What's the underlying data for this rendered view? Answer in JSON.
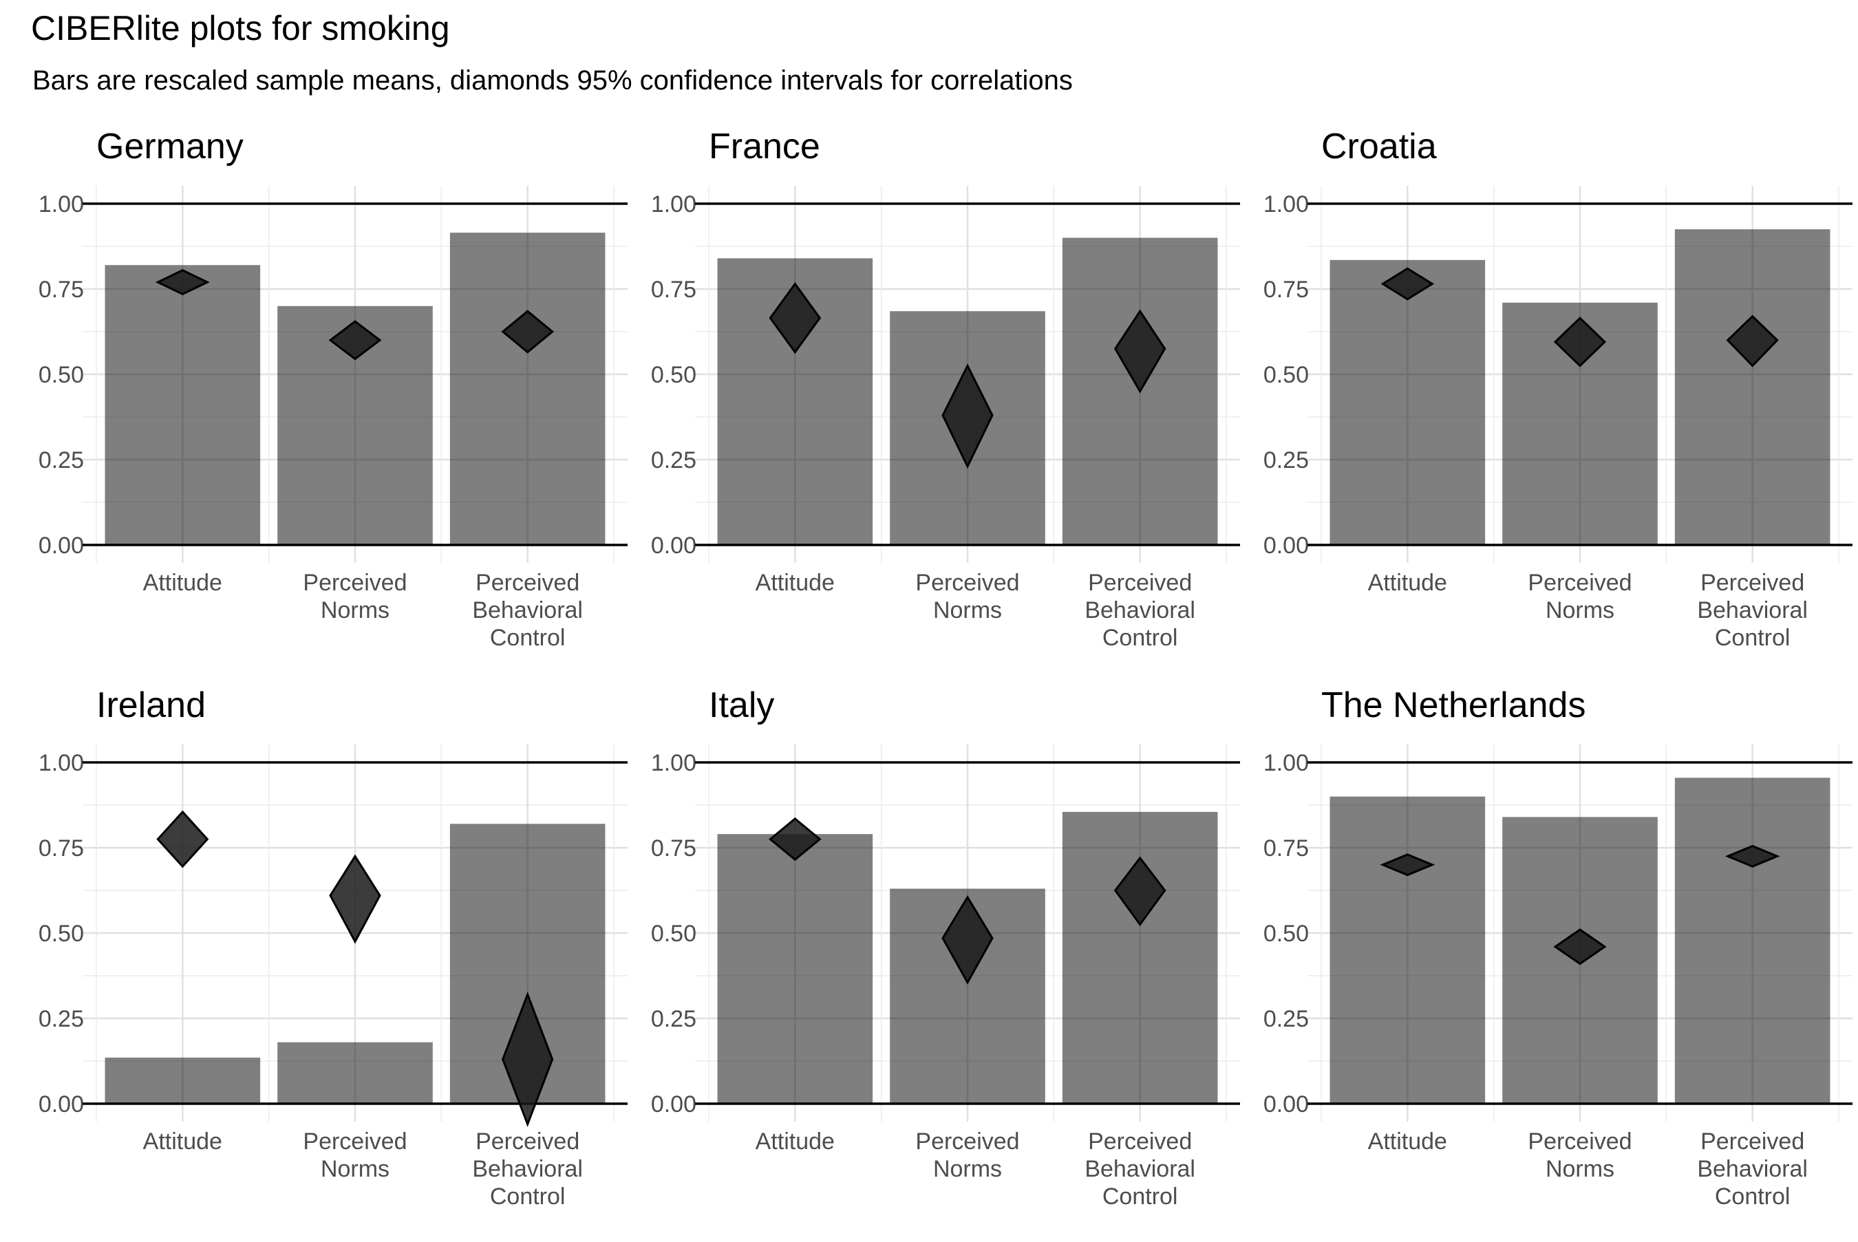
{
  "title": "CIBERlite plots for smoking",
  "subtitle": "Bars are rescaled sample means, diamonds 95% confidence intervals for correlations",
  "chart_data": {
    "type": "bar",
    "categories": [
      "Attitude",
      "Perceived Norms",
      "Perceived Behavioral Control"
    ],
    "ylim": [
      0,
      1
    ],
    "y_ticks": [
      "0.00",
      "0.25",
      "0.50",
      "0.75",
      "1.00"
    ],
    "grid": true,
    "panels": [
      {
        "title": "Germany",
        "bars": [
          0.82,
          0.7,
          0.915
        ],
        "ci": [
          {
            "lower": 0.735,
            "mid": 0.77,
            "upper": 0.805
          },
          {
            "lower": 0.545,
            "mid": 0.6,
            "upper": 0.655
          },
          {
            "lower": 0.565,
            "mid": 0.625,
            "upper": 0.685
          }
        ]
      },
      {
        "title": "France",
        "bars": [
          0.84,
          0.685,
          0.9
        ],
        "ci": [
          {
            "lower": 0.565,
            "mid": 0.665,
            "upper": 0.765
          },
          {
            "lower": 0.23,
            "mid": 0.38,
            "upper": 0.525
          },
          {
            "lower": 0.45,
            "mid": 0.575,
            "upper": 0.685
          }
        ]
      },
      {
        "title": "Croatia",
        "bars": [
          0.835,
          0.71,
          0.925
        ],
        "ci": [
          {
            "lower": 0.72,
            "mid": 0.765,
            "upper": 0.81
          },
          {
            "lower": 0.525,
            "mid": 0.595,
            "upper": 0.665
          },
          {
            "lower": 0.525,
            "mid": 0.6,
            "upper": 0.67
          }
        ]
      },
      {
        "title": "Ireland",
        "bars": [
          0.135,
          0.18,
          0.82
        ],
        "ci": [
          {
            "lower": 0.695,
            "mid": 0.775,
            "upper": 0.855
          },
          {
            "lower": 0.475,
            "mid": 0.61,
            "upper": 0.725
          },
          {
            "lower": -0.06,
            "mid": 0.13,
            "upper": 0.32
          }
        ]
      },
      {
        "title": "Italy",
        "bars": [
          0.79,
          0.63,
          0.855
        ],
        "ci": [
          {
            "lower": 0.715,
            "mid": 0.775,
            "upper": 0.835
          },
          {
            "lower": 0.355,
            "mid": 0.485,
            "upper": 0.605
          },
          {
            "lower": 0.525,
            "mid": 0.625,
            "upper": 0.72
          }
        ]
      },
      {
        "title": "The Netherlands",
        "bars": [
          0.9,
          0.84,
          0.955
        ],
        "ci": [
          {
            "lower": 0.67,
            "mid": 0.7,
            "upper": 0.73
          },
          {
            "lower": 0.41,
            "mid": 0.46,
            "upper": 0.51
          },
          {
            "lower": 0.695,
            "mid": 0.725,
            "upper": 0.755
          }
        ]
      }
    ]
  }
}
